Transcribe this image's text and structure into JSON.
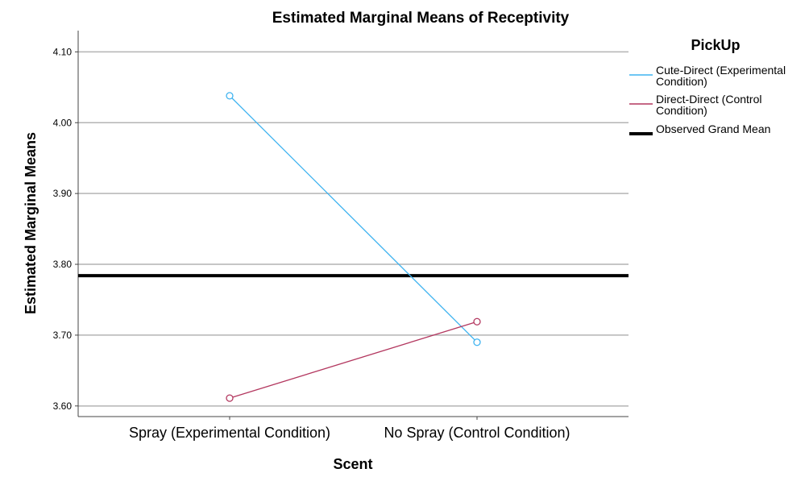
{
  "chart_data": {
    "type": "line",
    "title": "Estimated Marginal Means of Receptivity",
    "xlabel": "Scent",
    "ylabel": "Estimated Marginal Means",
    "categories": [
      "Spray (Experimental Condition)",
      "No Spray (Control Condition)"
    ],
    "ylim": [
      3.585,
      4.13
    ],
    "yticks": [
      "3.60",
      "3.70",
      "3.80",
      "3.90",
      "4.00",
      "4.10"
    ],
    "ytick_values": [
      3.6,
      3.7,
      3.8,
      3.9,
      4.0,
      4.1
    ],
    "grid": true,
    "legend": {
      "title": "PickUp",
      "placement": "right",
      "entries": [
        {
          "lines": [
            "Cute-Direct (Experimental",
            "Condition)"
          ],
          "color": "#3fb3f0"
        },
        {
          "lines": [
            "Direct-Direct (Control",
            "Condition)"
          ],
          "color": "#b3375f"
        },
        {
          "lines": [
            "Observed Grand Mean"
          ],
          "color": "#000000"
        }
      ]
    },
    "series": [
      {
        "name": "Cute-Direct (Experimental Condition)",
        "color": "#3fb3f0",
        "values": [
          4.038,
          3.69
        ]
      },
      {
        "name": "Direct-Direct (Control Condition)",
        "color": "#b3375f",
        "values": [
          3.611,
          3.719
        ]
      }
    ],
    "reference_lines": [
      {
        "name": "Observed Grand Mean",
        "value": 3.784,
        "color": "#000000"
      }
    ]
  }
}
